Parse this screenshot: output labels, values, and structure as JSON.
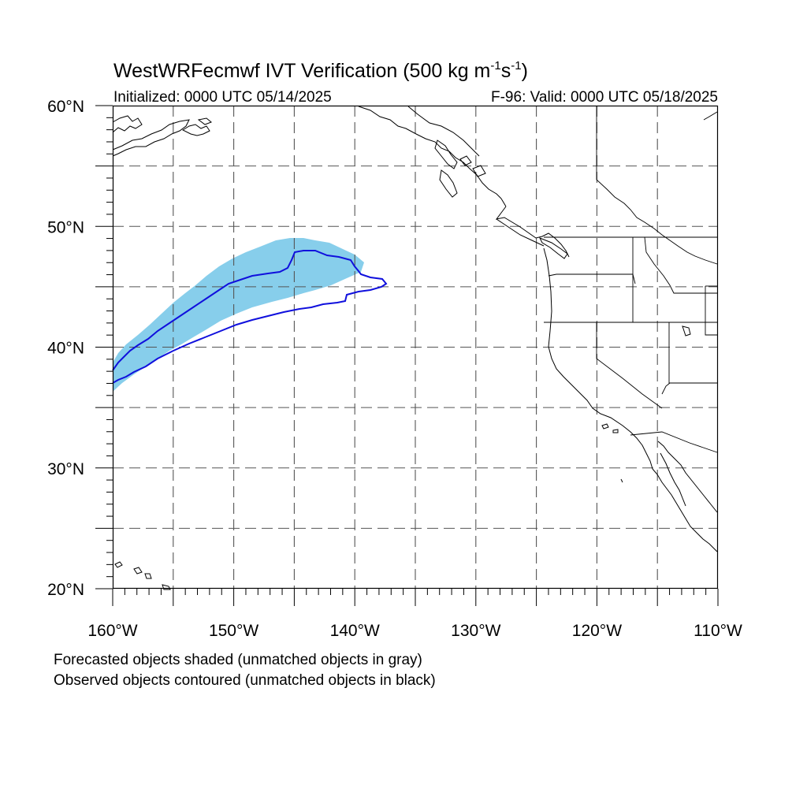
{
  "title": {
    "main": "WestWRFecmwf IVT Verification (500 kg m",
    "sup1": "-1",
    "mid": "s",
    "sup2": "-1",
    "end": ")"
  },
  "subtitle": {
    "left": "Initialized: 0000 UTC 05/14/2025",
    "right": "F-96: Valid: 0000 UTC 05/18/2025"
  },
  "map": {
    "lon_range": [
      -160,
      -110
    ],
    "lat_range": [
      20,
      60
    ],
    "lat_ticks": [
      {
        "value": 60,
        "label": "60°N"
      },
      {
        "value": 50,
        "label": "50°N"
      },
      {
        "value": 40,
        "label": "40°N"
      },
      {
        "value": 30,
        "label": "30°N"
      },
      {
        "value": 20,
        "label": "20°N"
      }
    ],
    "lon_ticks": [
      {
        "value": -160,
        "label": "160°W"
      },
      {
        "value": -150,
        "label": "150°W"
      },
      {
        "value": -140,
        "label": "140°W"
      },
      {
        "value": -130,
        "label": "130°W"
      },
      {
        "value": -120,
        "label": "120°W"
      },
      {
        "value": -110,
        "label": "110°W"
      }
    ],
    "grid_spacing_deg": 5,
    "grid": true,
    "colors": {
      "forecast_fill": "#87ceeb",
      "observed_contour": "#1010dd",
      "coast": "#000000",
      "grid": "#555555"
    }
  },
  "footer": {
    "line1": "Forecasted objects shaded (unmatched objects in gray)",
    "line2": "Observed objects contoured (unmatched objects in black)"
  }
}
